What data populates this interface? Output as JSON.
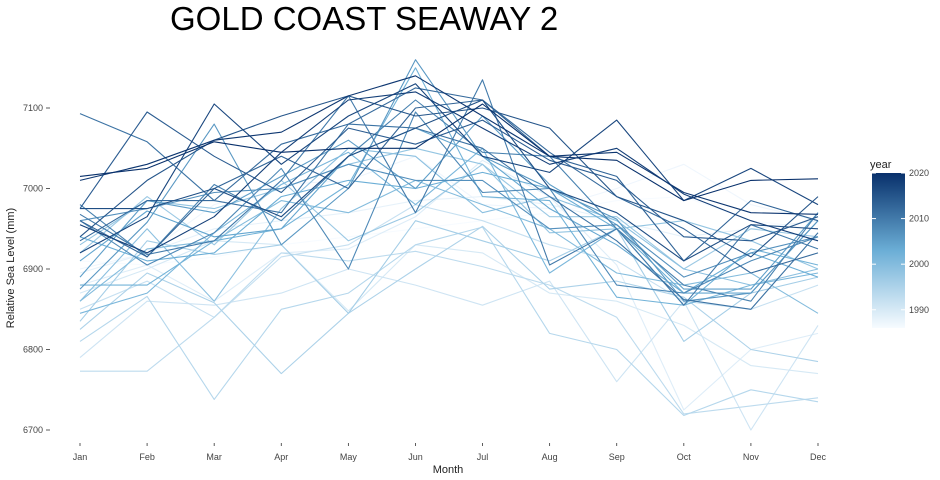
{
  "chart_data": {
    "type": "line",
    "title": "GOLD COAST SEAWAY 2",
    "xlabel": "Month",
    "ylabel": "Relative Sea Level (mm)",
    "categories": [
      "Jan",
      "Feb",
      "Mar",
      "Apr",
      "May",
      "Jun",
      "Jul",
      "Aug",
      "Sep",
      "Oct",
      "Nov",
      "Dec"
    ],
    "ylim": [
      6690,
      7160
    ],
    "yticks": [
      6700,
      6800,
      6900,
      7000,
      7100
    ],
    "grid": false,
    "legend": {
      "title": "year",
      "position": "right",
      "min_year": 1986,
      "max_year": 2020,
      "ticks": [
        1990,
        2000,
        2010,
        2020
      ],
      "color_low": "#f7fbff",
      "color_high": "#08306b"
    },
    "series": [
      {
        "year": 1986,
        "values": [
          6910,
          6905,
          6915,
          6930,
          6940,
          6950,
          6960,
          6970,
          6985,
          6990,
          6960,
          6950
        ]
      },
      {
        "year": 1987,
        "values": [
          6900,
          6920,
          6980,
          7005,
          7010,
          7040,
          6980,
          6975,
          7000,
          7030,
          6980,
          6960
        ]
      },
      {
        "year": 1988,
        "values": [
          6895,
          6920,
          6950,
          6960,
          6970,
          6985,
          6990,
          6980,
          6960,
          6940,
          6950,
          6960
        ]
      },
      {
        "year": 1989,
        "values": [
          6880,
          6905,
          6860,
          6920,
          6925,
          6965,
          7035,
          6990,
          6905,
          6725,
          6800,
          6820
        ]
      },
      {
        "year": 1990,
        "values": [
          6870,
          6900,
          6935,
          6930,
          6848,
          6930,
          6920,
          6870,
          6860,
          6830,
          6780,
          6770
        ]
      },
      {
        "year": 1991,
        "values": [
          6790,
          6860,
          6855,
          6870,
          6900,
          6880,
          6855,
          6885,
          6760,
          6860,
          6700,
          6830
        ]
      },
      {
        "year": 1992,
        "values": [
          6850,
          6885,
          6840,
          6915,
          6930,
          6980,
          6960,
          6930,
          6910,
          6860,
          6850,
          6880
        ]
      },
      {
        "year": 1993,
        "values": [
          6773,
          6773,
          6840,
          6920,
          6910,
          6922,
          6903,
          6880,
          6840,
          6720,
          6730,
          6740
        ]
      },
      {
        "year": 1994,
        "values": [
          6810,
          6866,
          6738,
          6850,
          6870,
          6930,
          6952,
          6820,
          6800,
          6718,
          6750,
          6735
        ]
      },
      {
        "year": 1995,
        "values": [
          6825,
          6895,
          6858,
          6770,
          6845,
          6900,
          6953,
          6875,
          6885,
          6865,
          6800,
          6785
        ]
      },
      {
        "year": 1996,
        "values": [
          6835,
          6935,
          6918,
          6930,
          6845,
          6960,
          6935,
          6910,
          6950,
          6810,
          6870,
          6890
        ]
      },
      {
        "year": 1997,
        "values": [
          6920,
          6990,
          6930,
          7010,
          6935,
          6970,
          7030,
          6965,
          6965,
          6900,
          6950,
          6940
        ]
      },
      {
        "year": 1998,
        "values": [
          6930,
          6985,
          6975,
          7000,
          7030,
          7050,
          7030,
          6945,
          6950,
          6960,
          6935,
          6900
        ]
      },
      {
        "year": 1999,
        "values": [
          6860,
          6950,
          6860,
          6975,
          7050,
          7040,
          6970,
          6990,
          6960,
          6900,
          6880,
          6900
        ]
      },
      {
        "year": 2000,
        "values": [
          6860,
          6925,
          6935,
          6985,
          6970,
          7010,
          6980,
          6950,
          6895,
          6880,
          6895,
          6845
        ]
      },
      {
        "year": 2001,
        "values": [
          6845,
          6870,
          6945,
          7005,
          7045,
          6980,
          7050,
          6895,
          6950,
          6855,
          6880,
          6895
        ]
      },
      {
        "year": 2002,
        "values": [
          6880,
          6880,
          6935,
          6950,
          7005,
          7150,
          6990,
          6985,
          6865,
          6855,
          6925,
          6905
        ]
      },
      {
        "year": 2003,
        "values": [
          6940,
          6910,
          6920,
          6990,
          7010,
          7000,
          7020,
          7000,
          6950,
          6870,
          6920,
          6890
        ]
      },
      {
        "year": 2004,
        "values": [
          6910,
          6972,
          6940,
          6950,
          7040,
          7075,
          7040,
          6975,
          6930,
          6870,
          6870,
          6960
        ]
      },
      {
        "year": 2005,
        "values": [
          6890,
          6985,
          6970,
          7015,
          7060,
          7000,
          7090,
          7005,
          6955,
          6875,
          6875,
          6970
        ]
      },
      {
        "year": 2006,
        "values": [
          6875,
          6958,
          7080,
          6930,
          7000,
          7160,
          7040,
          7000,
          6962,
          6860,
          6870,
          6960
        ]
      },
      {
        "year": 2007,
        "values": [
          6960,
          6975,
          6995,
          7000,
          7030,
          7010,
          7010,
          6950,
          6955,
          6890,
          6920,
          6940
        ]
      },
      {
        "year": 2008,
        "values": [
          6960,
          6905,
          6945,
          7025,
          6900,
          7095,
          6995,
          7000,
          6880,
          6870,
          6910,
          6940
        ]
      },
      {
        "year": 2009,
        "values": [
          6980,
          6915,
          7005,
          6960,
          7040,
          7110,
          7045,
          7040,
          6950,
          6880,
          6860,
          6970
        ]
      },
      {
        "year": 2010,
        "values": [
          6968,
          6918,
          6935,
          7010,
          7115,
          6970,
          7135,
          6905,
          6950,
          6855,
          6955,
          6925
        ]
      },
      {
        "year": 2011,
        "values": [
          7093,
          7058,
          6985,
          6970,
          7080,
          7075,
          7050,
          6990,
          6935,
          6862,
          6850,
          6945
        ]
      },
      {
        "year": 2012,
        "values": [
          6935,
          6985,
          6985,
          7055,
          7080,
          7125,
          7110,
          7045,
          6990,
          6950,
          6895,
          6920
        ]
      },
      {
        "year": 2013,
        "values": [
          6960,
          6915,
          7000,
          7040,
          7000,
          7100,
          7110,
          7040,
          7015,
          6910,
          6985,
          6960
        ]
      },
      {
        "year": 2014,
        "values": [
          6975,
          7095,
          7040,
          6995,
          7075,
          7055,
          7085,
          7035,
          7010,
          6940,
          6935,
          6965
        ]
      },
      {
        "year": 2015,
        "values": [
          6940,
          7010,
          7060,
          7090,
          7115,
          7090,
          7100,
          7075,
          6990,
          6960,
          6915,
          6990
        ]
      },
      {
        "year": 2016,
        "values": [
          6975,
          6975,
          7000,
          6965,
          7040,
          7075,
          7110,
          7000,
          6970,
          6910,
          6955,
          6950
        ]
      },
      {
        "year": 2017,
        "values": [
          6920,
          6965,
          7105,
          7030,
          7090,
          7130,
          7040,
          7020,
          7085,
          6985,
          7025,
          6980
        ]
      },
      {
        "year": 2018,
        "values": [
          6955,
          6920,
          6965,
          7045,
          7110,
          7120,
          7075,
          7030,
          7050,
          6993,
          6960,
          6935
        ]
      },
      {
        "year": 2019,
        "values": [
          7010,
          7030,
          7060,
          7070,
          7115,
          7140,
          7090,
          7040,
          7045,
          6995,
          6970,
          6968
        ]
      },
      {
        "year": 2020,
        "values": [
          7015,
          7025,
          7058,
          7045,
          7050,
          7050,
          7105,
          7040,
          7035,
          6985,
          7010,
          7012
        ]
      }
    ]
  }
}
